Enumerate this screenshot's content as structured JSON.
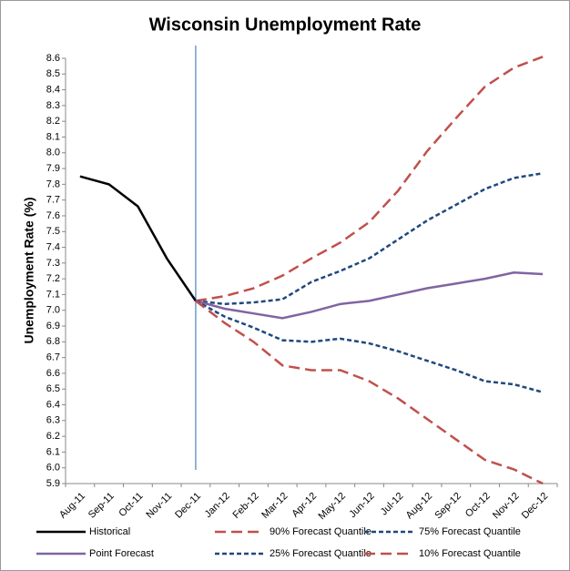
{
  "chart_data": {
    "type": "line",
    "title": "Wisconsin Unemployment Rate",
    "y_label": "Unemployment Rate (%)",
    "categories": [
      "Aug-11",
      "Sep-11",
      "Oct-11",
      "Nov-11",
      "Dec-11",
      "Jan-12",
      "Feb-12",
      "Mar-12",
      "Apr-12",
      "May-12",
      "Jun-12",
      "Jul-12",
      "Aug-12",
      "Sep-12",
      "Oct-12",
      "Nov-12",
      "Dec-12"
    ],
    "ylim": [
      5.9,
      8.6
    ],
    "yticks": [
      5.9,
      {
        "value": 6,
        "label": "6.0"
      },
      6.1,
      6.2,
      6.3,
      6.4,
      6.5,
      6.6,
      6.7,
      6.8,
      6.9,
      {
        "value": 7,
        "label": "7.0"
      },
      7.1,
      7.2,
      7.3,
      7.4,
      7.5,
      7.6,
      7.7,
      7.8,
      7.9,
      {
        "value": 8,
        "label": "8.0"
      },
      8.1,
      8.2,
      8.3,
      8.4,
      8.5,
      8.6
    ],
    "series": [
      {
        "name": "Historical",
        "color": "#000000",
        "dash": "solid",
        "values": [
          7.85,
          7.8,
          7.66,
          7.33,
          7.06,
          null,
          null,
          null,
          null,
          null,
          null,
          null,
          null,
          null,
          null,
          null,
          null
        ]
      },
      {
        "name": "90% Forecast Quantile",
        "color": "#c0504d",
        "dash": "long",
        "values": [
          null,
          null,
          null,
          null,
          7.06,
          7.09,
          7.14,
          7.22,
          7.33,
          7.43,
          7.56,
          7.76,
          8.01,
          8.22,
          8.42,
          8.54,
          8.61
        ]
      },
      {
        "name": "75% Forecast Quantile",
        "color": "#1f497d",
        "dash": "short",
        "values": [
          null,
          null,
          null,
          null,
          7.06,
          7.04,
          7.05,
          7.07,
          7.18,
          7.25,
          7.33,
          7.45,
          7.57,
          7.67,
          7.77,
          7.84,
          7.87
        ]
      },
      {
        "name": "Point Forecast",
        "color": "#8064a2",
        "dash": "solid",
        "values": [
          null,
          null,
          null,
          null,
          7.06,
          7.01,
          6.98,
          6.95,
          6.99,
          7.04,
          7.06,
          7.1,
          7.14,
          7.17,
          7.2,
          7.24,
          7.23
        ]
      },
      {
        "name": "25% Forecast Quantile",
        "color": "#1f497d",
        "dash": "short",
        "values": [
          null,
          null,
          null,
          null,
          7.06,
          6.96,
          6.89,
          6.81,
          6.8,
          6.82,
          6.79,
          6.74,
          6.68,
          6.62,
          6.55,
          6.53,
          6.48
        ]
      },
      {
        "name": "10% Forecast Quantile",
        "color": "#c0504d",
        "dash": "long",
        "values": [
          null,
          null,
          null,
          null,
          7.06,
          6.92,
          6.8,
          6.65,
          6.62,
          6.62,
          6.55,
          6.44,
          6.31,
          6.18,
          6.05,
          5.99,
          5.9
        ]
      }
    ]
  }
}
